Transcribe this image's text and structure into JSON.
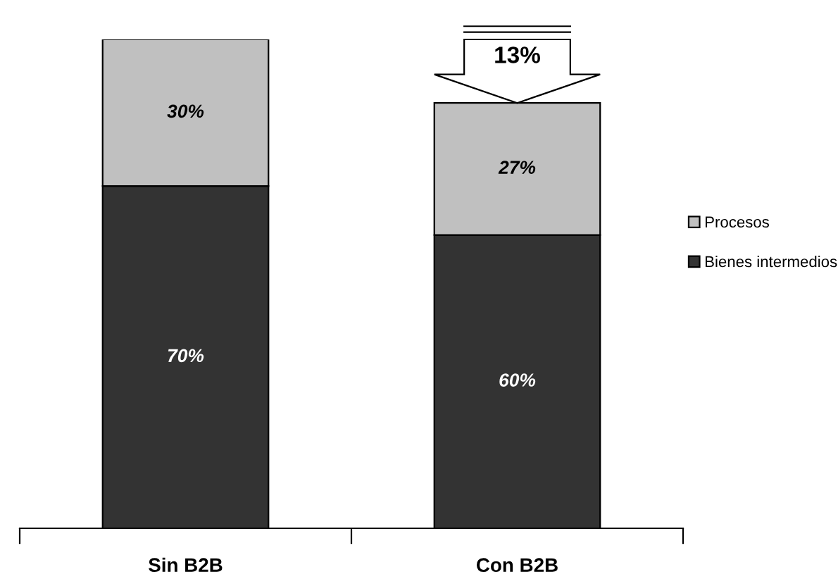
{
  "chart_data": {
    "type": "bar",
    "stacked": true,
    "categories": [
      "Sin B2B",
      "Con B2B"
    ],
    "series": [
      {
        "name": "Bienes intermedios",
        "color": "#333333",
        "values": [
          70,
          60
        ],
        "value_labels": [
          "70%",
          "60%"
        ]
      },
      {
        "name": "Procesos",
        "color": "#c0c0c0",
        "values": [
          30,
          27
        ],
        "value_labels": [
          "30%",
          "27%"
        ]
      }
    ],
    "annotations": [
      "13%"
    ],
    "legend": "right",
    "grid": false
  }
}
